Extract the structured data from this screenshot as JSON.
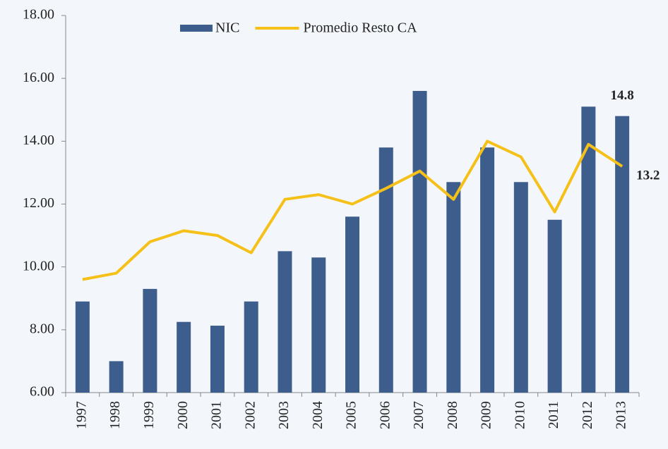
{
  "chart_data": {
    "type": "bar-line",
    "categories": [
      "1997",
      "1998",
      "1999",
      "2000",
      "2001",
      "2002",
      "2003",
      "2004",
      "2005",
      "2006",
      "2007",
      "2008",
      "2009",
      "2010",
      "2011",
      "2012",
      "2013"
    ],
    "series": [
      {
        "name": "NIC",
        "type": "bar",
        "color": "#3d5e8c",
        "values": [
          8.9,
          7.0,
          9.3,
          8.25,
          8.13,
          8.9,
          10.5,
          10.3,
          11.6,
          13.8,
          15.6,
          12.7,
          13.8,
          12.7,
          11.5,
          15.1,
          14.8
        ],
        "value_labels": [
          null,
          null,
          null,
          null,
          null,
          null,
          null,
          null,
          null,
          null,
          null,
          null,
          null,
          null,
          null,
          null,
          "14.8"
        ]
      },
      {
        "name": "Promedio Resto CA",
        "type": "line",
        "color": "#f5c018",
        "values": [
          9.6,
          9.8,
          10.8,
          11.15,
          11.0,
          10.45,
          12.15,
          12.3,
          12.0,
          12.5,
          13.05,
          12.15,
          14.0,
          13.5,
          11.75,
          13.9,
          13.2
        ],
        "value_labels": [
          null,
          null,
          null,
          null,
          null,
          null,
          null,
          null,
          null,
          null,
          null,
          null,
          null,
          null,
          null,
          null,
          "13.2"
        ]
      }
    ],
    "ylim": [
      6,
      18
    ],
    "yticks": [
      {
        "value": 6,
        "label": "6.00"
      },
      {
        "value": 8,
        "label": "8.00"
      },
      {
        "value": 10,
        "label": "10.00"
      },
      {
        "value": 12,
        "label": "12.00"
      },
      {
        "value": 14,
        "label": "14.00"
      },
      {
        "value": 16,
        "label": "16.00"
      },
      {
        "value": 18,
        "label": "18.00"
      }
    ],
    "legend": "top"
  }
}
